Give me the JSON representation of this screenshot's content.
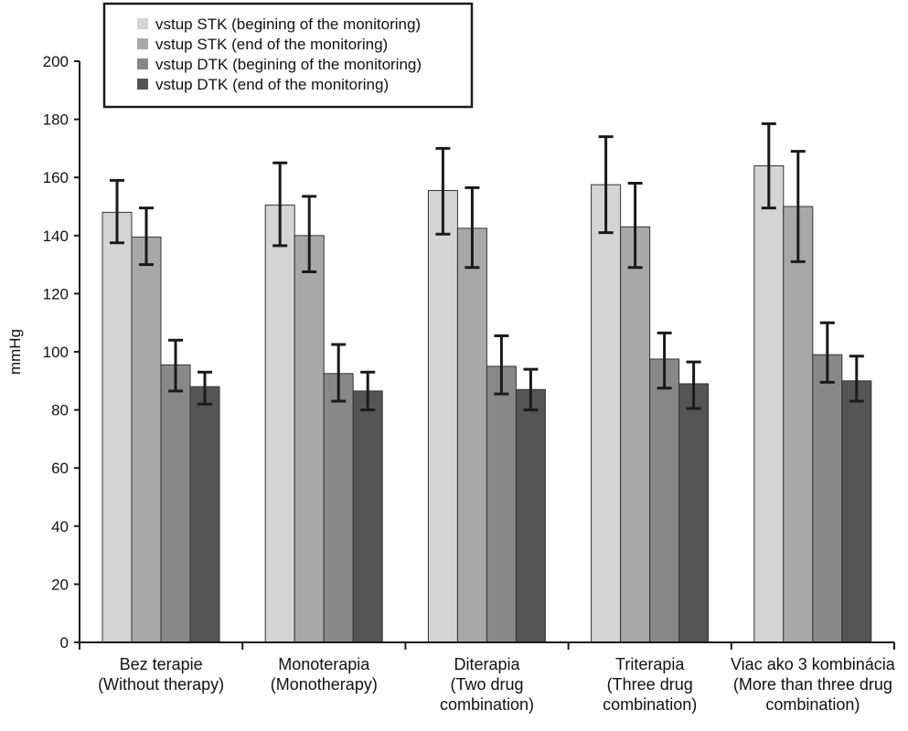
{
  "chart_data": {
    "type": "bar",
    "title": "",
    "xlabel": "",
    "ylabel": "mmHg",
    "ylim": [
      0,
      200
    ],
    "yticks": [
      0,
      20,
      40,
      60,
      80,
      100,
      120,
      140,
      160,
      180,
      200
    ],
    "grid": false,
    "legend_position": "top-left",
    "categories": [
      [
        "Bez terapie",
        "(Without therapy)"
      ],
      [
        "Monoterapia",
        "(Monotherapy)"
      ],
      [
        "Diterapia",
        "(Two drug",
        "combination)"
      ],
      [
        "Triterapia",
        "(Three drug",
        "combination)"
      ],
      [
        "Viac ako 3 kombinácia",
        "(More than three drug",
        "combination)"
      ]
    ],
    "series": [
      {
        "name": "vstup STK (begining of the monitoring)",
        "color": "#d4d4d4",
        "values": [
          148,
          150.5,
          155.5,
          157.5,
          164
        ],
        "error_low": [
          137.5,
          136.5,
          140.5,
          141,
          149.5
        ],
        "error_high": [
          159,
          165,
          170,
          174,
          178.5
        ]
      },
      {
        "name": "vstup STK (end of the monitoring)",
        "color": "#a8a8a8",
        "values": [
          139.5,
          140,
          142.5,
          143,
          150
        ],
        "error_low": [
          130,
          127.5,
          129,
          129,
          131
        ],
        "error_high": [
          149.5,
          153.5,
          156.5,
          158,
          169
        ]
      },
      {
        "name": "vstup DTK (begining of the monitoring)",
        "color": "#888888",
        "values": [
          95.5,
          92.5,
          95,
          97.5,
          99
        ],
        "error_low": [
          86.5,
          83,
          85.5,
          87.5,
          89.5
        ],
        "error_high": [
          104,
          102.5,
          105.5,
          106.5,
          110
        ]
      },
      {
        "name": "vstup DTK (end of the monitoring)",
        "color": "#555555",
        "values": [
          88,
          86.5,
          87,
          89,
          90
        ],
        "error_low": [
          82,
          80,
          80,
          80.5,
          83
        ],
        "error_high": [
          93,
          93,
          94,
          96.5,
          98.5
        ]
      }
    ]
  }
}
